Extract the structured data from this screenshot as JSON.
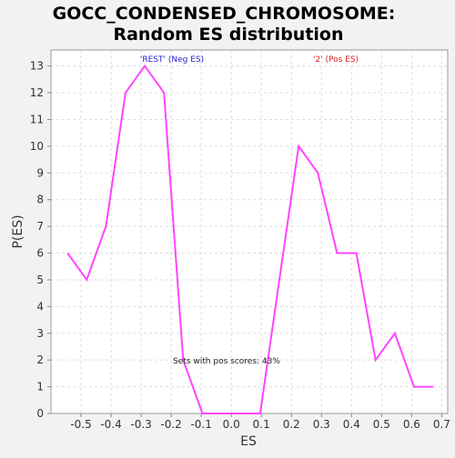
{
  "chart_data": {
    "type": "line",
    "title_lines": [
      "GOCC_CONDENSED_CHROMOSOME:",
      "Random ES distribution"
    ],
    "xlabel": "ES",
    "ylabel": "P(ES)",
    "xlim": [
      -0.6,
      0.72
    ],
    "ylim": [
      0,
      13.6
    ],
    "x_ticks": [
      -0.5,
      -0.4,
      -0.3,
      -0.2,
      -0.1,
      0.0,
      0.1,
      0.2,
      0.3,
      0.4,
      0.5,
      0.6,
      0.7
    ],
    "x_tick_labels": [
      "-0.5",
      "-0.4",
      "-0.3",
      "-0.2",
      "-0.1",
      "0.0",
      "0.1",
      "0.2",
      "0.3",
      "0.4",
      "0.5",
      "0.6",
      "0.7"
    ],
    "y_ticks": [
      0,
      1,
      2,
      3,
      4,
      5,
      6,
      7,
      8,
      9,
      10,
      11,
      12,
      13
    ],
    "y_tick_labels": [
      "0",
      "1",
      "2",
      "3",
      "4",
      "5",
      "6",
      "7",
      "8",
      "9",
      "10",
      "11",
      "12",
      "13"
    ],
    "grid": true,
    "series": [
      {
        "color": "#ff44ff",
        "x": [
          -0.545,
          -0.481,
          -0.417,
          -0.352,
          -0.288,
          -0.224,
          -0.16,
          -0.096,
          -0.032,
          0.032,
          0.096,
          0.16,
          0.224,
          0.288,
          0.352,
          0.416,
          0.48,
          0.544,
          0.608,
          0.672
        ],
        "y": [
          6,
          5,
          7,
          12,
          13,
          12,
          2,
          0,
          0,
          0,
          0,
          5,
          10,
          9,
          6,
          6,
          2,
          3,
          1,
          1
        ]
      }
    ],
    "annotations": {
      "neg_label": "'REST' (Neg ES)",
      "pos_label": "'2' (Pos ES)",
      "pos_scores": "Sets with pos scores: 43%"
    },
    "colors": {
      "neg_label": "#2222cc",
      "pos_label": "#dd2222",
      "plot_background": "#ffffff",
      "grid": "#dddddd"
    }
  }
}
